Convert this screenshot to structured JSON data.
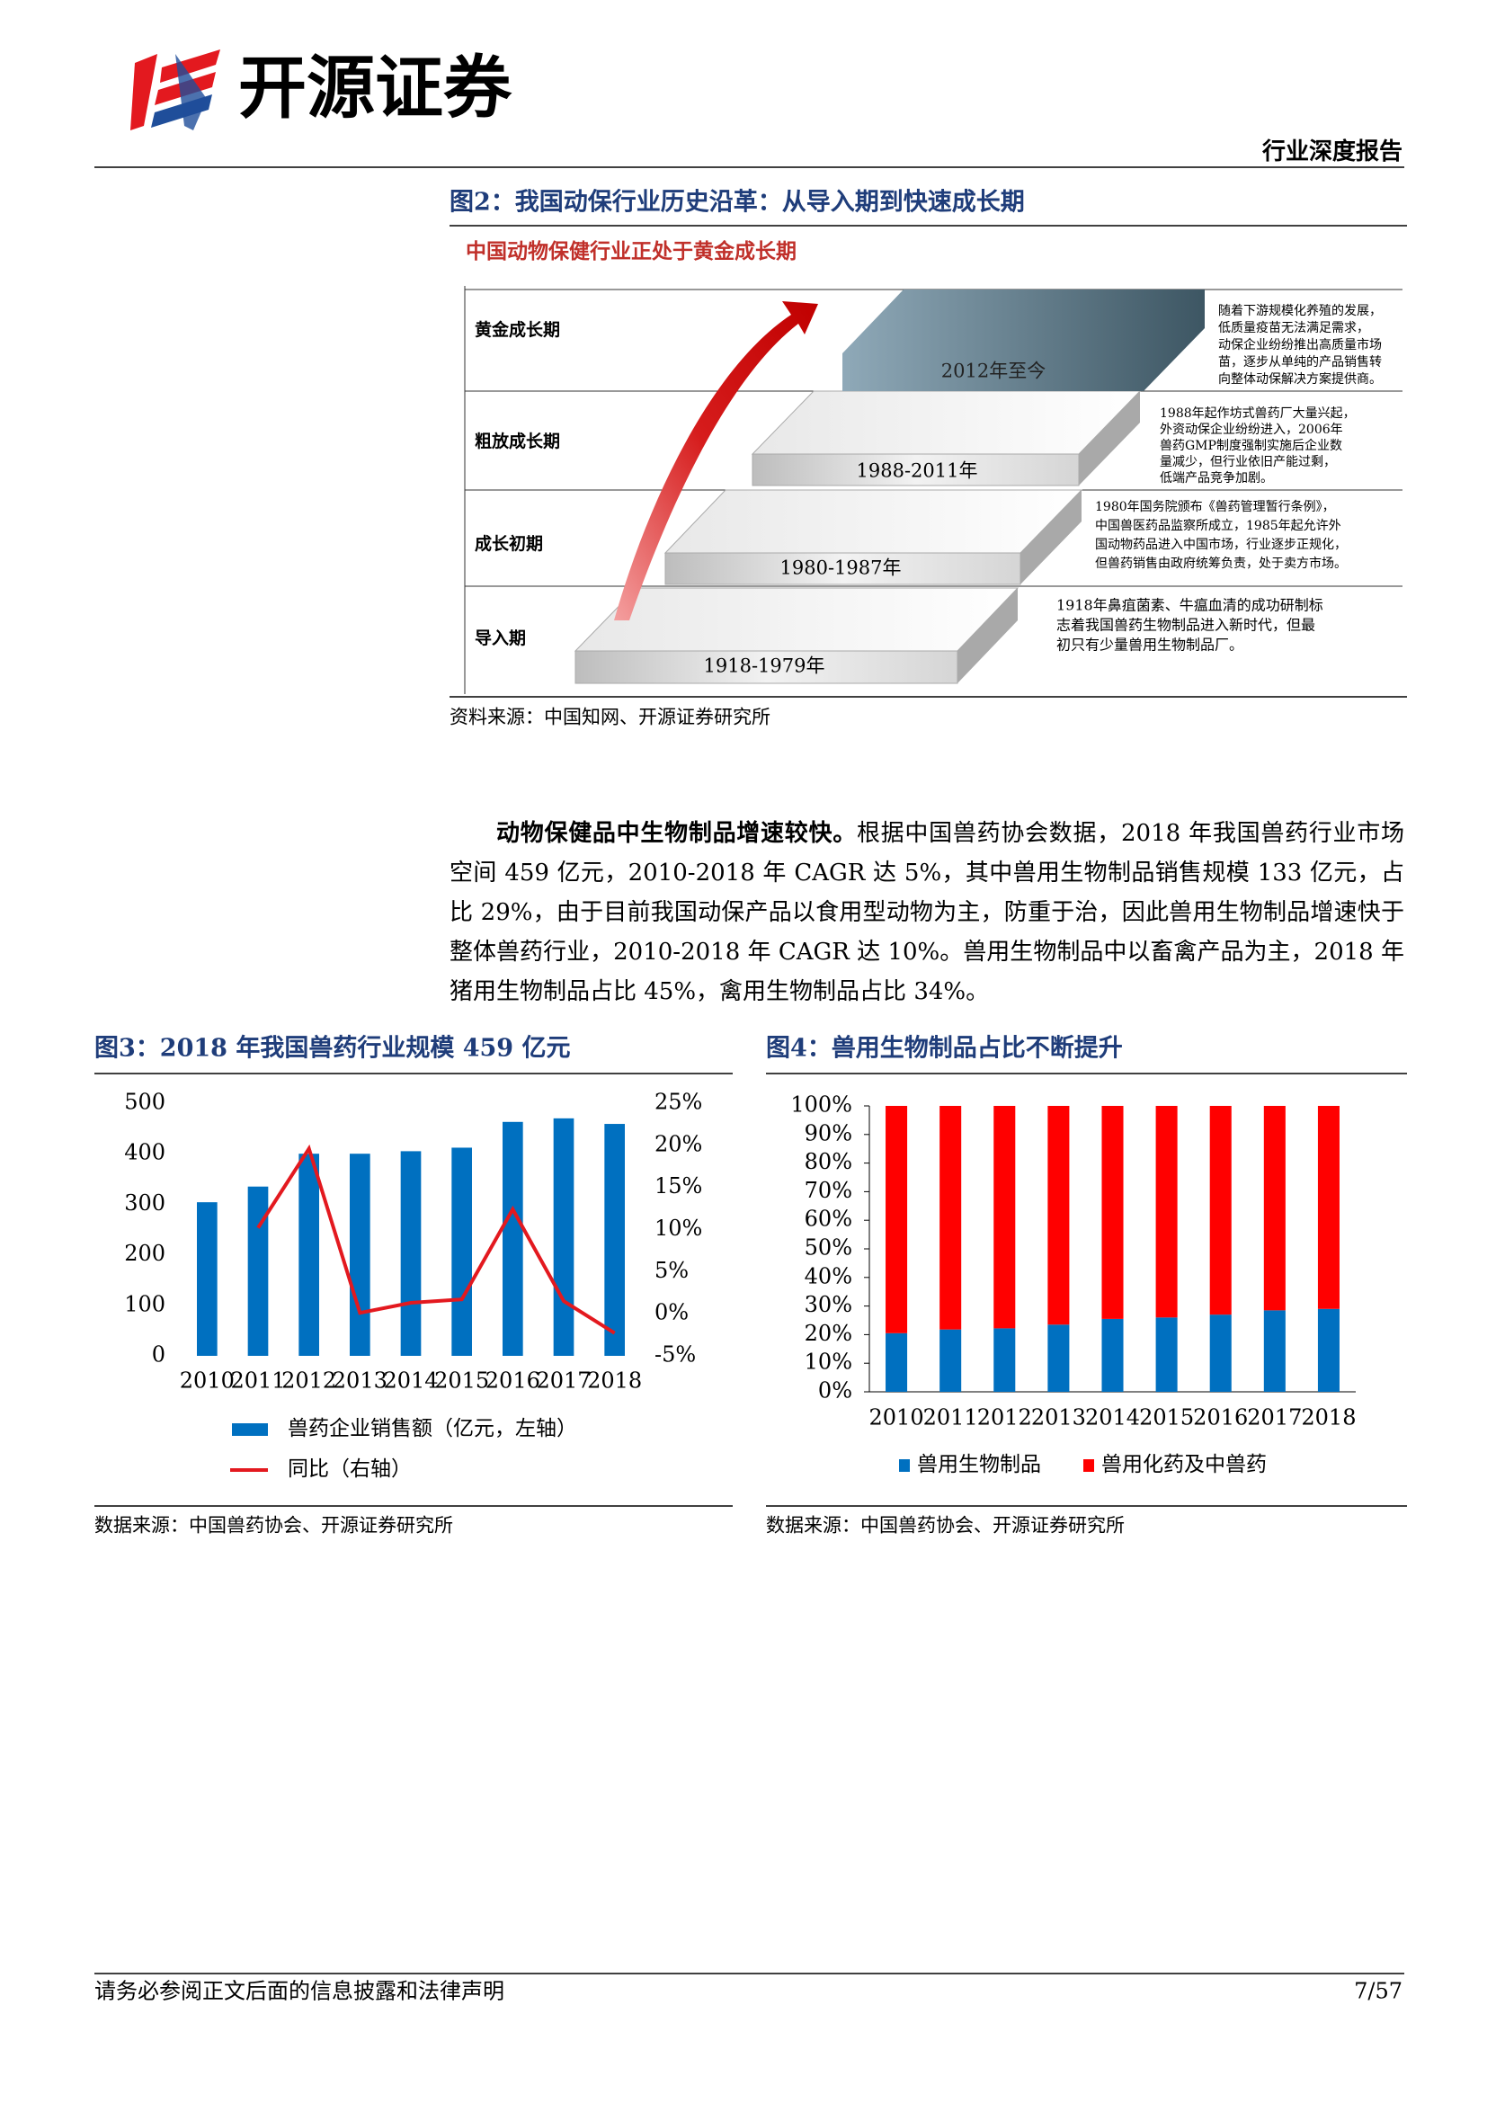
{
  "header": {
    "logo": "开源证券",
    "tag": "行业深度报告"
  },
  "figure2": {
    "title": "图2：我国动保行业历史沿革：从导入期到快速成长期",
    "subtitle": "中国动物保健行业正处于黄金成长期",
    "phases": [
      "黄金成长期",
      "粗放成长期",
      "成长初期",
      "导入期"
    ],
    "steps": [
      "2012年至今",
      "1988-2011年",
      "1980-1987年",
      "1918-1979年"
    ],
    "notes": [
      [
        "随着下游规模化养殖的发展，",
        "低质量疫苗无法满足需求，",
        "动保企业纷纷推出高质量市场",
        "苗，逐步从单纯的产品销售转",
        "向整体动保解决方案提供商。"
      ],
      [
        "1988年起作坊式兽药厂大量兴起，",
        "外资动保企业纷纷进入，2006年",
        "兽药GMP制度强制实施后企业数",
        "量减少，但行业依旧产能过剩，",
        "低端产品竞争加剧。"
      ],
      [
        "1980年国务院颁布《兽药管理暂行条例》，",
        "中国兽医药品监察所成立，1985年起允许外",
        "国动物药品进入中国市场，行业逐步正规化，",
        "但兽药销售由政府统筹负责，处于卖方市场。"
      ],
      [
        "1918年鼻疽菌素、牛瘟血清的成功研制标",
        "志着我国兽药生物制品进入新时代，但最",
        "初只有少量兽用生物制品厂。"
      ]
    ],
    "source": "资料来源：中国知网、开源证券研究所"
  },
  "paragraph": {
    "lead": "动物保健品中生物制品增速较快。",
    "body": "根据中国兽药协会数据，2018 年我国兽药行业市场空间 459 亿元，2010-2018 年 CAGR 达 5%，其中兽用生物制品销售规模 133 亿元，占比 29%，由于目前我国动保产品以食用型动物为主，防重于治，因此兽用生物制品增速快于整体兽药行业，2010-2018 年 CAGR 达 10%。兽用生物制品中以畜禽产品为主，2018 年猪用生物制品占比 45%，禽用生物制品占比 34%。"
  },
  "chart_data": [
    {
      "type": "bar",
      "title": "图3：2018 年我国兽药行业规模 459 亿元",
      "source": "数据来源：中国兽药协会、开源证券研究所",
      "categories": [
        "2010",
        "2011",
        "2012",
        "2013",
        "2014",
        "2015",
        "2016",
        "2017",
        "2018"
      ],
      "series": [
        {
          "name": "兽药企业销售额（亿元，左轴）",
          "color": "#0070c0",
          "values": [
            304,
            335,
            400,
            400,
            405,
            412,
            463,
            470,
            459
          ]
        },
        {
          "name": "同比（右轴）",
          "color": "#e3191f",
          "axis": "y2",
          "values": [
            null,
            10.2,
            19.6,
            0.1,
            1.3,
            1.7,
            12.4,
            1.5,
            -2.3
          ]
        }
      ],
      "ylim": [
        0,
        500
      ],
      "yticks": [
        0,
        100,
        200,
        300,
        400,
        500
      ],
      "y2lim": [
        -5,
        25
      ],
      "y2ticks": [
        {
          "value": -5,
          "label": "-5%"
        },
        {
          "value": 0,
          "label": "0%"
        },
        {
          "value": 5,
          "label": "5%"
        },
        {
          "value": 10,
          "label": "10%"
        },
        {
          "value": 15,
          "label": "15%"
        },
        {
          "value": 20,
          "label": "20%"
        },
        {
          "value": 25,
          "label": "25%"
        }
      ]
    },
    {
      "type": "stacked_bar",
      "title": "图4：兽用生物制品占比不断提升",
      "source": "数据来源：中国兽药协会、开源证券研究所",
      "categories": [
        "2010",
        "2011",
        "2012",
        "2013",
        "2014",
        "2015",
        "2016",
        "2017",
        "2018"
      ],
      "series": [
        {
          "name": "兽用生物制品",
          "color": "#0070c0",
          "values": [
            20.5,
            21.8,
            22.2,
            23.5,
            25.5,
            26,
            27,
            28.5,
            29
          ]
        },
        {
          "name": "兽用化药及中兽药",
          "color": "#ff0000",
          "values": [
            79.5,
            78.2,
            77.8,
            76.5,
            74.5,
            74,
            73,
            71.5,
            71
          ]
        }
      ],
      "ylim": [
        0,
        100
      ],
      "yticks": [
        {
          "value": 0,
          "label": "0%"
        },
        {
          "value": 10,
          "label": "10%"
        },
        {
          "value": 20,
          "label": "20%"
        },
        {
          "value": 30,
          "label": "30%"
        },
        {
          "value": 40,
          "label": "40%"
        },
        {
          "value": 50,
          "label": "50%"
        },
        {
          "value": 60,
          "label": "60%"
        },
        {
          "value": 70,
          "label": "70%"
        },
        {
          "value": 80,
          "label": "80%"
        },
        {
          "value": 90,
          "label": "90%"
        },
        {
          "value": 100,
          "label": "100%"
        }
      ]
    }
  ],
  "footer": {
    "disclaimer": "请务必参阅正文后面的信息披露和法律声明",
    "page": "7/57"
  }
}
